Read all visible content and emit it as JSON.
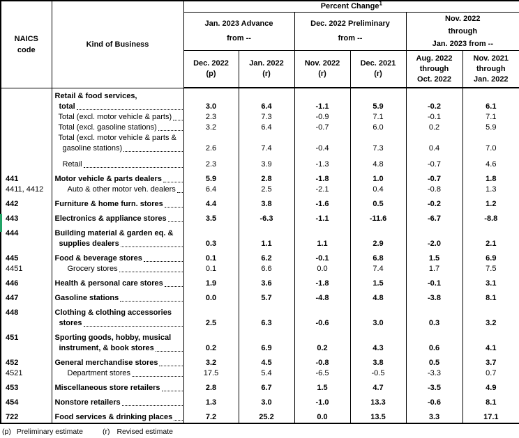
{
  "table": {
    "title": "Percent Change",
    "title_footnote_marker": "1",
    "header": {
      "naics_lines": [
        "NAICS",
        "code"
      ],
      "kind_of_business": "Kind of Business",
      "groups": [
        {
          "lines": [
            "Jan. 2023 Advance",
            "from --"
          ]
        },
        {
          "lines": [
            "Dec. 2022 Preliminary",
            "from --"
          ]
        },
        {
          "lines": [
            "Nov. 2022",
            "through",
            "Jan. 2023 from --"
          ]
        }
      ],
      "columns": [
        {
          "lines": [
            "Dec. 2022",
            "(p)"
          ]
        },
        {
          "lines": [
            "Jan. 2022",
            "(r)"
          ]
        },
        {
          "lines": [
            "Nov. 2022",
            "(r)"
          ]
        },
        {
          "lines": [
            "Dec. 2021",
            "(r)"
          ]
        },
        {
          "lines": [
            "Aug. 2022",
            "through",
            "Oct. 2022"
          ]
        },
        {
          "lines": [
            "Nov. 2021",
            "through",
            "Jan. 2022"
          ]
        }
      ]
    },
    "rows": [
      {
        "code": "",
        "label_lines": [
          "Retail & food services,",
          "total"
        ],
        "indent": 0,
        "bold": true,
        "section_start": false,
        "values": [
          "3.0",
          "6.4",
          "-1.1",
          "5.9",
          "-0.2",
          "6.1"
        ]
      },
      {
        "code": "",
        "label_lines": [
          "Total (excl. motor vehicle & parts)"
        ],
        "indent": 1,
        "bold": false,
        "section_start": false,
        "values": [
          "2.3",
          "7.3",
          "-0.9",
          "7.1",
          "-0.1",
          "7.1"
        ]
      },
      {
        "code": "",
        "label_lines": [
          "Total (excl. gasoline stations)"
        ],
        "indent": 1,
        "bold": false,
        "section_start": false,
        "values": [
          "3.2",
          "6.4",
          "-0.7",
          "6.0",
          "0.2",
          "5.9"
        ]
      },
      {
        "code": "",
        "label_lines": [
          "Total (excl. motor vehicle & parts &",
          "gasoline stations)"
        ],
        "indent": 1,
        "bold": false,
        "section_start": false,
        "values": [
          "2.6",
          "7.4",
          "-0.4",
          "7.3",
          "0.4",
          "7.0"
        ]
      },
      {
        "code": "",
        "label_lines": [
          "Retail"
        ],
        "indent": 2,
        "bold": false,
        "section_start": true,
        "values": [
          "2.3",
          "3.9",
          "-1.3",
          "4.8",
          "-0.7",
          "4.6"
        ]
      },
      {
        "code": "441",
        "label_lines": [
          "Motor vehicle & parts dealers"
        ],
        "indent": 0,
        "bold": true,
        "section_start": true,
        "values": [
          "5.9",
          "2.8",
          "-1.8",
          "1.0",
          "-0.7",
          "1.8"
        ]
      },
      {
        "code": "4411, 4412",
        "label_lines": [
          "Auto & other motor veh. dealers"
        ],
        "indent": 3,
        "bold": false,
        "section_start": false,
        "values": [
          "6.4",
          "2.5",
          "-2.1",
          "0.4",
          "-0.8",
          "1.3"
        ]
      },
      {
        "code": "442",
        "label_lines": [
          "Furniture & home furn. stores"
        ],
        "indent": 0,
        "bold": true,
        "section_start": true,
        "values": [
          "4.4",
          "3.8",
          "-1.6",
          "0.5",
          "-0.2",
          "1.2"
        ]
      },
      {
        "code": "443",
        "label_lines": [
          "Electronics & appliance stores"
        ],
        "indent": 0,
        "bold": true,
        "section_start": true,
        "values": [
          "3.5",
          "-6.3",
          "-1.1",
          "-11.6",
          "-6.7",
          "-8.8"
        ]
      },
      {
        "code": "444",
        "label_lines": [
          "Building material & garden eq. &",
          "supplies dealers"
        ],
        "indent": 0,
        "bold": true,
        "section_start": true,
        "values": [
          "0.3",
          "1.1",
          "1.1",
          "2.9",
          "-2.0",
          "2.1"
        ]
      },
      {
        "code": "445",
        "label_lines": [
          "Food & beverage stores"
        ],
        "indent": 0,
        "bold": true,
        "section_start": true,
        "values": [
          "0.1",
          "6.2",
          "-0.1",
          "6.8",
          "1.5",
          "6.9"
        ]
      },
      {
        "code": "4451",
        "label_lines": [
          "Grocery stores"
        ],
        "indent": 3,
        "bold": false,
        "section_start": false,
        "values": [
          "0.1",
          "6.6",
          "0.0",
          "7.4",
          "1.7",
          "7.5"
        ]
      },
      {
        "code": "446",
        "label_lines": [
          "Health & personal care stores"
        ],
        "indent": 0,
        "bold": true,
        "section_start": true,
        "values": [
          "1.9",
          "3.6",
          "-1.8",
          "1.5",
          "-0.1",
          "3.1"
        ]
      },
      {
        "code": "447",
        "label_lines": [
          "Gasoline stations"
        ],
        "indent": 0,
        "bold": true,
        "section_start": true,
        "values": [
          "0.0",
          "5.7",
          "-4.8",
          "4.8",
          "-3.8",
          "8.1"
        ]
      },
      {
        "code": "448",
        "label_lines": [
          "Clothing & clothing accessories",
          "stores"
        ],
        "indent": 0,
        "bold": true,
        "section_start": true,
        "values": [
          "2.5",
          "6.3",
          "-0.6",
          "3.0",
          "0.3",
          "3.2"
        ]
      },
      {
        "code": "451",
        "label_lines": [
          "Sporting goods, hobby, musical",
          "instrument, & book stores"
        ],
        "indent": 0,
        "bold": true,
        "section_start": true,
        "values": [
          "0.2",
          "6.9",
          "0.2",
          "4.3",
          "0.6",
          "4.1"
        ]
      },
      {
        "code": "452",
        "label_lines": [
          "General merchandise stores"
        ],
        "indent": 0,
        "bold": true,
        "section_start": true,
        "values": [
          "3.2",
          "4.5",
          "-0.8",
          "3.8",
          "0.5",
          "3.7"
        ]
      },
      {
        "code": "4521",
        "label_lines": [
          "Department stores"
        ],
        "indent": 3,
        "bold": false,
        "section_start": false,
        "values": [
          "17.5",
          "5.4",
          "-6.5",
          "-0.5",
          "-3.3",
          "0.7"
        ]
      },
      {
        "code": "453",
        "label_lines": [
          "Miscellaneous store retailers"
        ],
        "indent": 0,
        "bold": true,
        "section_start": true,
        "values": [
          "2.8",
          "6.7",
          "1.5",
          "4.7",
          "-3.5",
          "4.9"
        ]
      },
      {
        "code": "454",
        "label_lines": [
          "Nonstore retailers"
        ],
        "indent": 0,
        "bold": true,
        "section_start": true,
        "values": [
          "1.3",
          "3.0",
          "-1.0",
          "13.3",
          "-0.6",
          "8.1"
        ]
      },
      {
        "code": "722",
        "label_lines": [
          "Food services & drinking places"
        ],
        "indent": 0,
        "bold": true,
        "section_start": true,
        "values": [
          "7.2",
          "25.2",
          "0.0",
          "13.5",
          "3.3",
          "17.1"
        ]
      }
    ],
    "footnotes": [
      {
        "symbol": "(p)",
        "text": "Preliminary estimate"
      },
      {
        "symbol": "(r)",
        "text": "Revised estimate"
      }
    ]
  }
}
